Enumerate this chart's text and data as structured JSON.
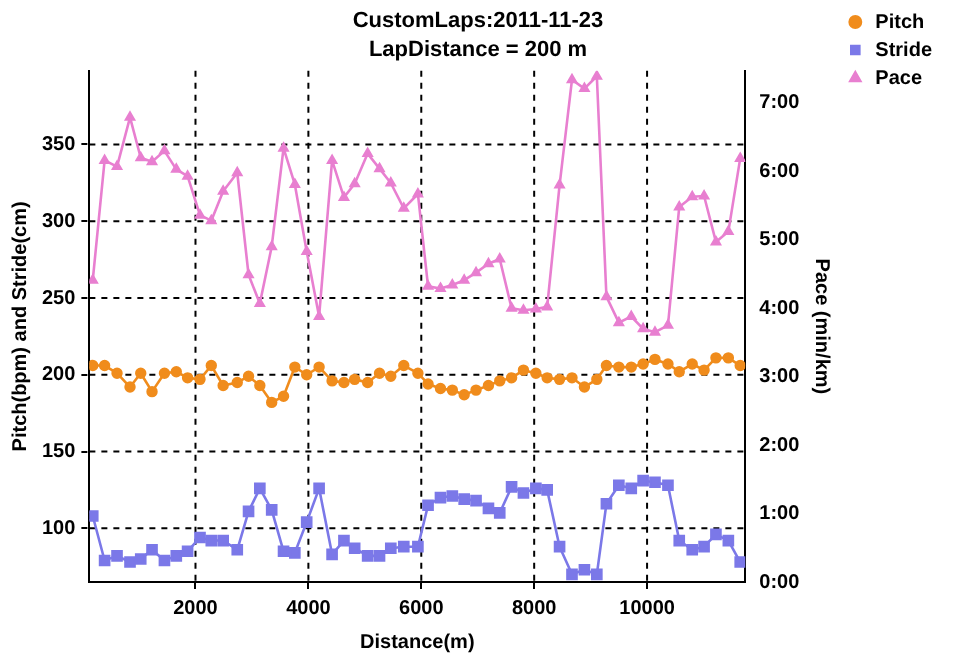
{
  "chart_data": {
    "type": "line",
    "title": "CustomLaps:2011-11-23",
    "subtitle": "LapDistance = 200 m",
    "xlabel": "Distance(m)",
    "ylabel": "Pitch(bpm) and Stride(cm)",
    "y2label": "Pace (min/km)",
    "x": [
      180,
      390,
      610,
      840,
      1030,
      1230,
      1450,
      1660,
      1860,
      2080,
      2280,
      2490,
      2740,
      2940,
      3140,
      3350,
      3560,
      3760,
      3970,
      4190,
      4420,
      4630,
      4820,
      5050,
      5260,
      5460,
      5690,
      5940,
      6120,
      6340,
      6550,
      6760,
      6970,
      7190,
      7390,
      7600,
      7810,
      8030,
      8230,
      8450,
      8670,
      8890,
      9110,
      9280,
      9500,
      9720,
      9930,
      10140,
      10370,
      10570,
      10800,
      11010,
      11220,
      11440,
      11650
    ],
    "series": [
      {
        "name": "Pitch",
        "color": "#f08c1c",
        "marker": "circle",
        "values": [
          206,
          206,
          201,
          192,
          201,
          189,
          201,
          202,
          198,
          197,
          206,
          193,
          195,
          199,
          193,
          182,
          186,
          205,
          200,
          205,
          196,
          195,
          197,
          195,
          201,
          199,
          206,
          201,
          194,
          191,
          190,
          187,
          190,
          193,
          196,
          198,
          203,
          201,
          198,
          197,
          198,
          192,
          197,
          206,
          205,
          205,
          207,
          210,
          207,
          202,
          207,
          203,
          211,
          211,
          206
        ]
      },
      {
        "name": "Stride",
        "color": "#7b78e8",
        "marker": "square",
        "values": [
          108,
          79,
          82,
          78,
          80,
          86,
          79,
          82,
          85,
          94,
          92,
          92,
          86,
          111,
          126,
          112,
          85,
          84,
          104,
          126,
          83,
          92,
          87,
          82,
          82,
          87,
          88,
          88,
          115,
          120,
          121,
          119,
          118,
          113,
          110,
          127,
          123,
          126,
          125,
          88,
          70,
          73,
          70,
          116,
          128,
          126,
          131,
          130,
          128,
          92,
          86,
          88,
          96,
          92,
          78
        ]
      },
      {
        "name": "Pace",
        "color": "#e87fd0",
        "marker": "triangle",
        "axis": "y2",
        "values": [
          4.41,
          6.16,
          6.07,
          6.79,
          6.2,
          6.14,
          6.3,
          6.03,
          5.93,
          5.36,
          5.28,
          5.71,
          5.98,
          4.49,
          4.07,
          4.9,
          6.34,
          5.81,
          4.83,
          3.88,
          6.16,
          5.62,
          5.82,
          6.26,
          6.04,
          5.83,
          5.46,
          5.67,
          4.32,
          4.29,
          4.34,
          4.41,
          4.52,
          4.65,
          4.72,
          4.0,
          3.97,
          3.99,
          4.02,
          5.8,
          7.34,
          7.21,
          7.39,
          4.17,
          3.79,
          3.88,
          3.7,
          3.65,
          3.75,
          5.48,
          5.63,
          5.64,
          4.97,
          5.12,
          6.19
        ]
      }
    ],
    "xlim": [
      120,
      11740
    ],
    "xticks": [
      2000,
      4000,
      6000,
      8000,
      10000
    ],
    "ylim": [
      65,
      398
    ],
    "yticks": [
      100,
      150,
      200,
      250,
      300,
      350
    ],
    "y2lim": [
      0,
      7.47
    ],
    "y2ticks": [
      {
        "value": 0,
        "label": "0:00"
      },
      {
        "value": 1,
        "label": "1:00"
      },
      {
        "value": 2,
        "label": "2:00"
      },
      {
        "value": 3,
        "label": "3:00"
      },
      {
        "value": 4,
        "label": "4:00"
      },
      {
        "value": 5,
        "label": "5:00"
      },
      {
        "value": 6,
        "label": "6:00"
      },
      {
        "value": 7,
        "label": "7:00"
      }
    ],
    "grid": true,
    "legend": "top right",
    "line_style": "solid"
  }
}
